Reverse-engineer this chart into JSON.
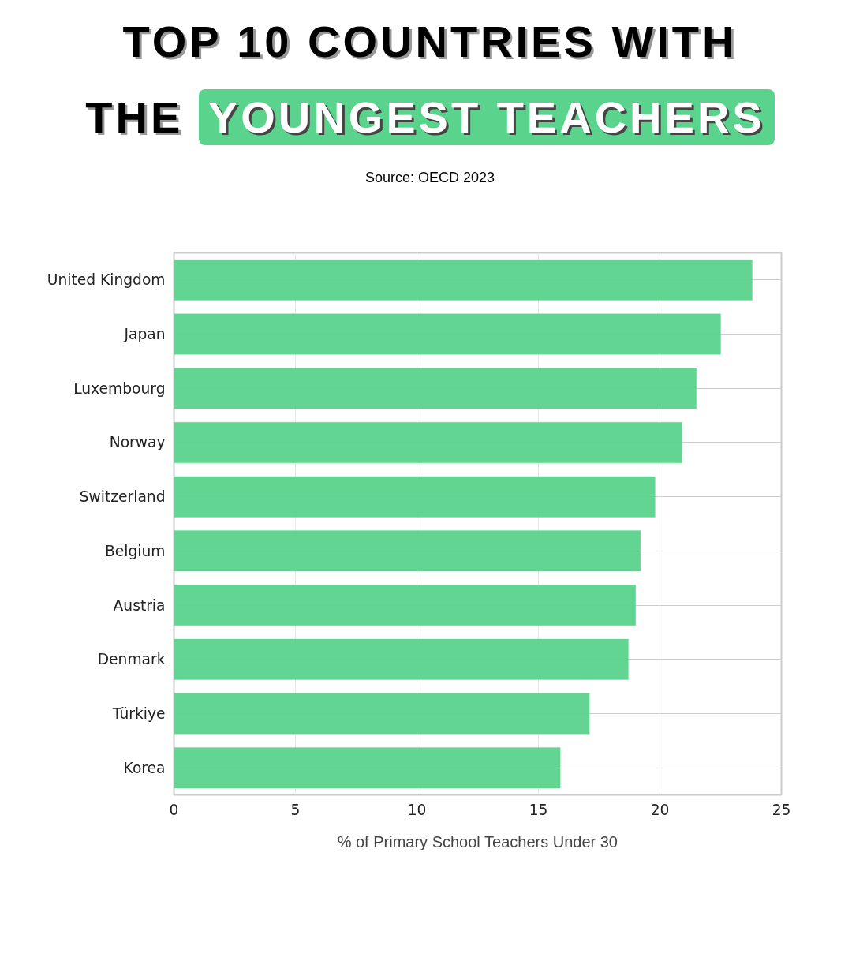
{
  "chart_data": {
    "type": "bar",
    "orientation": "horizontal",
    "title": "TOP 10 COUNTRIES WITH THE YOUNGEST TEACHERS",
    "annotations": [
      "Source: OECD 2023"
    ],
    "categories": [
      "United Kingdom",
      "Japan",
      "Luxembourg",
      "Norway",
      "Switzerland",
      "Belgium",
      "Austria",
      "Denmark",
      "Türkiye",
      "Korea"
    ],
    "values": [
      23.8,
      22.5,
      21.5,
      20.9,
      19.8,
      19.2,
      19.0,
      18.7,
      17.1,
      15.9
    ],
    "color": "#5ad38c",
    "xlabel": "% of Primary School Teachers Under 30",
    "xlim": [
      0,
      25
    ],
    "xticks": [
      0,
      5,
      10,
      15,
      20,
      25
    ],
    "grid": true
  }
}
